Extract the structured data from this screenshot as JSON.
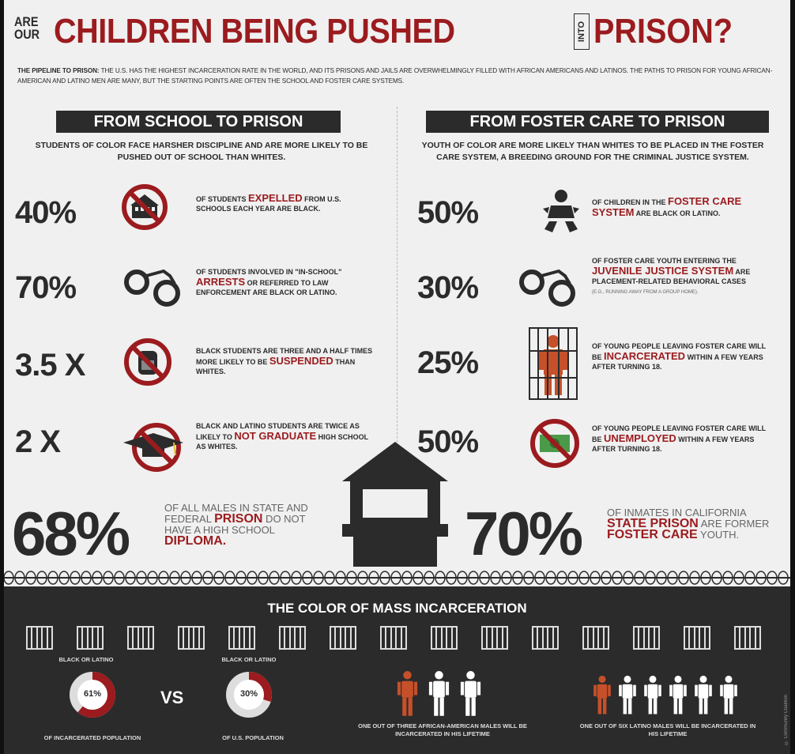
{
  "header": {
    "are_our": "ARE OUR",
    "title": "CHILDREN BEING PUSHED",
    "into": "INTO",
    "title_end": "PRISON?",
    "intro_lead": "THE PIPELINE TO PRISON:",
    "intro_text": " THE U.S. HAS THE HIGHEST INCARCERATION RATE IN THE WORLD, AND ITS PRISONS AND JAILS ARE OVERWHELMINGLY FILLED WITH AFRICAN AMERICANS AND LATINOS. THE PATHS TO PRISON FOR YOUNG AFRICAN-AMERICAN AND LATINO MEN ARE MANY, BUT THE STARTING POINTS ARE OFTEN THE SCHOOL AND FOSTER CARE SYSTEMS."
  },
  "school": {
    "heading": "FROM  SCHOOL TO PRISON",
    "subheading": "STUDENTS OF COLOR FACE HARSHER DISCIPLINE AND ARE MORE LIKELY TO BE PUSHED OUT OF SCHOOL THAN WHITES.",
    "stats": [
      {
        "value": "40%",
        "pre": "OF STUDENTS ",
        "highlight": "EXPELLED",
        "post": " FROM U.S. SCHOOLS EACH YEAR ARE BLACK.",
        "icon": "school-building-icon"
      },
      {
        "value": "70%",
        "pre": "OF STUDENTS INVOLVED IN \"IN-SCHOOL\" ",
        "highlight": "ARRESTS",
        "post": " OR REFERRED TO LAW ENFORCEMENT ARE BLACK OR LATINO.",
        "icon": "handcuffs-icon"
      },
      {
        "value": "3.5 X",
        "pre": "BLACK STUDENTS ARE THREE AND A HALF TIMES MORE LIKELY TO BE ",
        "highlight": "SUSPENDED",
        "post": " THAN WHITES.",
        "icon": "backpack-icon"
      },
      {
        "value": "2 X",
        "pre": "BLACK AND LATINO STUDENTS ARE TWICE AS LIKELY TO ",
        "highlight": "NOT GRADUATE",
        "post": " HIGH SCHOOL AS WHITES.",
        "icon": "graduation-cap-icon"
      }
    ],
    "big_value": "68%",
    "big_pre": "OF ALL MALES IN STATE AND FEDERAL ",
    "big_h1": "PRISON",
    "big_mid": " DO NOT HAVE A HIGH SCHOOL ",
    "big_h2": "DIPLOMA."
  },
  "foster": {
    "heading": "FROM  FOSTER CARE TO PRISON",
    "subheading": "YOUTH OF COLOR ARE MORE LIKELY THAN WHITES TO BE PLACED IN THE FOSTER CARE SYSTEM, A BREEDING GROUND FOR THE CRIMINAL JUSTICE SYSTEM.",
    "stats": [
      {
        "value": "50%",
        "pre": "OF CHILDREN IN THE ",
        "highlight": "FOSTER CARE SYSTEM",
        "post": " ARE BLACK OR LATINO.",
        "icon": "child-icon"
      },
      {
        "value": "30%",
        "pre": "OF FOSTER CARE YOUTH ENTERING THE ",
        "highlight": "JUVENILE JUSTICE SYSTEM",
        "post": " ARE PLACEMENT-RELATED BEHAVIORAL CASES",
        "note": "(e.g., RUNNING AWAY FROM A GROUP HOME).",
        "icon": "handcuffs-icon"
      },
      {
        "value": "25%",
        "pre": "OF YOUNG PEOPLE LEAVING FOSTER CARE WILL BE ",
        "highlight": "INCARCERATED",
        "post": " WITHIN A FEW YEARS AFTER TURNING 18.",
        "icon": "prisoner-bars-icon"
      },
      {
        "value": "50%",
        "pre": "OF YOUNG PEOPLE LEAVING FOSTER CARE WILL BE ",
        "highlight": "UNEMPLOYED",
        "post": " WITHIN A FEW YEARS AFTER TURNING 18.",
        "icon": "money-icon"
      }
    ],
    "big_value": "70%",
    "big_pre": "OF INMATES IN CALIFORNIA ",
    "big_h1": "STATE PRISON",
    "big_mid": " ARE FORMER ",
    "big_h2": "FOSTER CARE",
    "big_post": " YOUTH."
  },
  "bottom": {
    "title": "THE COLOR OF MASS INCARCERATION",
    "ring1_top": "BLACK OR LATINO",
    "ring1_value": "61%",
    "ring1_fraction": 0.61,
    "ring1_bottom": "OF INCARCERATED POPULATION",
    "vs": "VS",
    "ring2_top": "BLACK OR LATINO",
    "ring2_value": "30%",
    "ring2_fraction": 0.3,
    "ring2_bottom": "OF U.S. POPULATION",
    "people1_caption": "ONE OUT OF THREE AFRICAN-AMERICAN MALES WILL BE INCARCERATED IN HIS LIFETIME",
    "people2_caption": "ONE OUT OF SIX LATINO MALES WILL BE INCARCERATED IN HIS LIFETIME",
    "credit": "© Community Coalition"
  },
  "colors": {
    "red": "#9b1b1e",
    "dark": "#2b2b2b",
    "orange": "#c6502a",
    "light": "#f0f0f0"
  }
}
